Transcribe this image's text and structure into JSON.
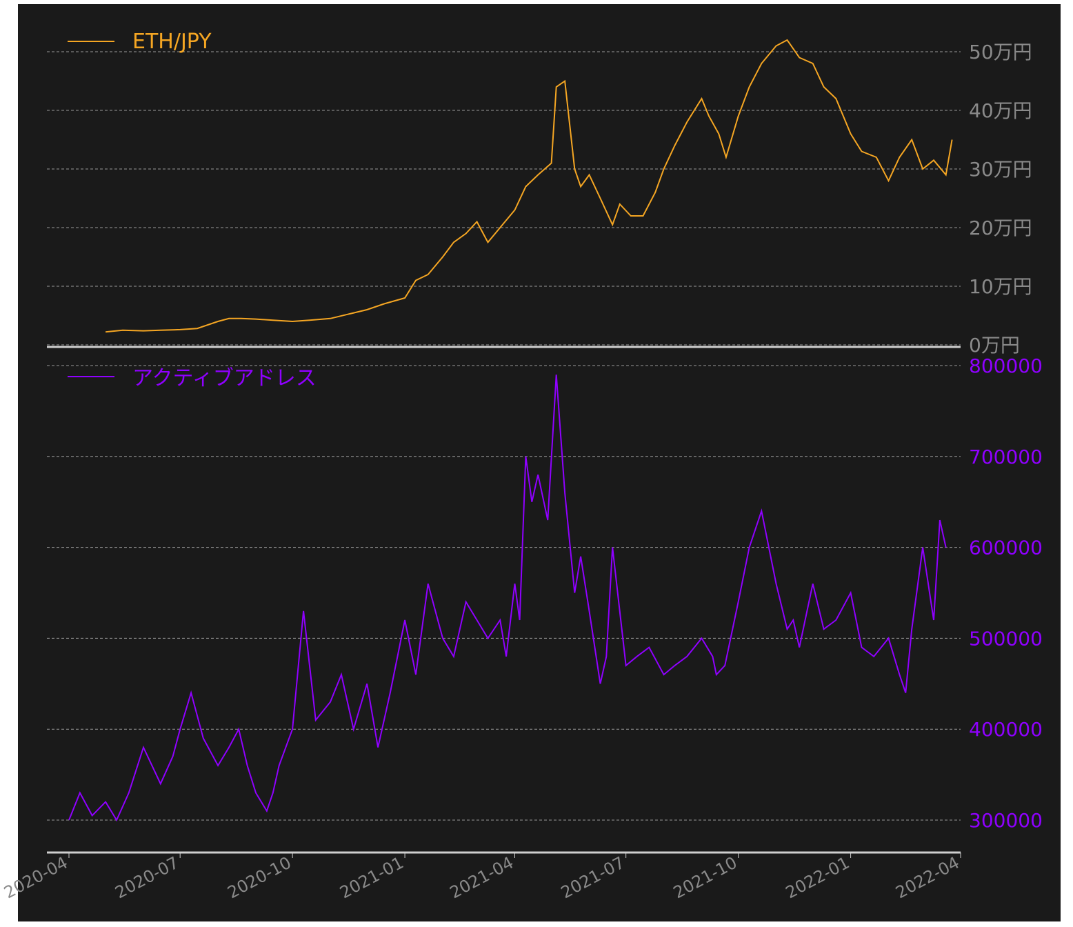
{
  "colors": {
    "background": "#1a1a1a",
    "outer": "#ffffff",
    "eth_line": "#f5a623",
    "addr_line": "#8f00ff",
    "grid": "#9a9a9a",
    "axis_line": "#cfcfcf",
    "tick_top": "#8a8a8a",
    "tick_bottom": "#8f00ff"
  },
  "chart_data": [
    {
      "type": "line",
      "panel": "top",
      "legend": [
        "ETH/JPY"
      ],
      "legend_placement": "top-left",
      "y_axis_side": "right",
      "yticks": [
        0,
        100000,
        200000,
        300000,
        400000,
        500000
      ],
      "ytick_labels": [
        "0万円",
        "10万円",
        "20万円",
        "30万円",
        "40万円",
        "50万円"
      ],
      "ylim": [
        0,
        550000
      ],
      "grid": "horizontal dashed",
      "series": [
        {
          "name": "ETH/JPY",
          "x": [
            "2020-05-01",
            "2020-05-15",
            "2020-06-01",
            "2020-06-15",
            "2020-07-01",
            "2020-07-15",
            "2020-08-01",
            "2020-08-10",
            "2020-08-20",
            "2020-09-01",
            "2020-09-15",
            "2020-10-01",
            "2020-10-15",
            "2020-11-01",
            "2020-11-15",
            "2020-12-01",
            "2020-12-15",
            "2021-01-01",
            "2021-01-10",
            "2021-01-20",
            "2021-02-01",
            "2021-02-10",
            "2021-02-20",
            "2021-03-01",
            "2021-03-10",
            "2021-03-20",
            "2021-04-01",
            "2021-04-10",
            "2021-04-20",
            "2021-05-01",
            "2021-05-05",
            "2021-05-12",
            "2021-05-20",
            "2021-05-25",
            "2021-06-01",
            "2021-06-10",
            "2021-06-20",
            "2021-06-26",
            "2021-07-05",
            "2021-07-15",
            "2021-07-25",
            "2021-08-01",
            "2021-08-10",
            "2021-08-20",
            "2021-09-01",
            "2021-09-07",
            "2021-09-15",
            "2021-09-21",
            "2021-10-01",
            "2021-10-10",
            "2021-10-20",
            "2021-11-01",
            "2021-11-10",
            "2021-11-20",
            "2021-12-01",
            "2021-12-10",
            "2021-12-20",
            "2022-01-01",
            "2022-01-10",
            "2022-01-22",
            "2022-02-01",
            "2022-02-10",
            "2022-02-20",
            "2022-03-01",
            "2022-03-10",
            "2022-03-20",
            "2022-03-25"
          ],
          "y": [
            22000,
            25000,
            24000,
            25000,
            26000,
            28000,
            40000,
            45000,
            45000,
            44000,
            42000,
            40000,
            42000,
            45000,
            52000,
            60000,
            70000,
            80000,
            110000,
            120000,
            150000,
            175000,
            190000,
            210000,
            175000,
            200000,
            230000,
            270000,
            290000,
            310000,
            440000,
            450000,
            300000,
            270000,
            290000,
            250000,
            205000,
            240000,
            220000,
            220000,
            260000,
            300000,
            340000,
            380000,
            420000,
            390000,
            360000,
            320000,
            390000,
            440000,
            480000,
            510000,
            520000,
            490000,
            480000,
            440000,
            420000,
            360000,
            330000,
            320000,
            280000,
            320000,
            350000,
            300000,
            315000,
            290000,
            350000
          ],
          "y_unit": "円"
        }
      ]
    },
    {
      "type": "line",
      "panel": "bottom",
      "legend": [
        "アクティブアドレス"
      ],
      "legend_placement": "top-left",
      "y_axis_side": "right",
      "yticks": [
        300000,
        400000,
        500000,
        600000,
        700000,
        800000
      ],
      "ytick_labels": [
        "300000",
        "400000",
        "500000",
        "600000",
        "700000",
        "800000"
      ],
      "ylim": [
        265000,
        800000
      ],
      "grid": "horizontal dashed",
      "xticks": [
        "2020-04",
        "2020-07",
        "2020-10",
        "2021-01",
        "2021-04",
        "2021-07",
        "2021-10",
        "2022-01",
        "2022-04"
      ],
      "series": [
        {
          "name": "アクティブアドレス",
          "x": [
            "2020-04-01",
            "2020-04-10",
            "2020-04-20",
            "2020-05-01",
            "2020-05-10",
            "2020-05-20",
            "2020-06-01",
            "2020-06-08",
            "2020-06-15",
            "2020-06-25",
            "2020-07-01",
            "2020-07-10",
            "2020-07-20",
            "2020-08-01",
            "2020-08-10",
            "2020-08-18",
            "2020-08-25",
            "2020-09-01",
            "2020-09-10",
            "2020-09-15",
            "2020-09-20",
            "2020-10-01",
            "2020-10-10",
            "2020-10-20",
            "2020-11-01",
            "2020-11-10",
            "2020-11-20",
            "2020-12-01",
            "2020-12-10",
            "2020-12-20",
            "2021-01-01",
            "2021-01-10",
            "2021-01-20",
            "2021-02-01",
            "2021-02-10",
            "2021-02-20",
            "2021-03-01",
            "2021-03-10",
            "2021-03-20",
            "2021-03-25",
            "2021-04-01",
            "2021-04-05",
            "2021-04-10",
            "2021-04-15",
            "2021-04-20",
            "2021-04-28",
            "2021-05-05",
            "2021-05-12",
            "2021-05-20",
            "2021-05-25",
            "2021-06-01",
            "2021-06-10",
            "2021-06-15",
            "2021-06-20",
            "2021-07-01",
            "2021-07-10",
            "2021-07-20",
            "2021-08-01",
            "2021-08-10",
            "2021-08-20",
            "2021-09-01",
            "2021-09-10",
            "2021-09-13",
            "2021-09-20",
            "2021-10-01",
            "2021-10-10",
            "2021-10-20",
            "2021-11-01",
            "2021-11-10",
            "2021-11-15",
            "2021-11-20",
            "2021-12-01",
            "2021-12-10",
            "2021-12-20",
            "2022-01-01",
            "2022-01-10",
            "2022-01-20",
            "2022-02-01",
            "2022-02-10",
            "2022-02-15",
            "2022-02-20",
            "2022-03-01",
            "2022-03-10",
            "2022-03-15",
            "2022-03-20"
          ],
          "y": [
            300000,
            330000,
            305000,
            320000,
            300000,
            330000,
            380000,
            360000,
            340000,
            370000,
            400000,
            440000,
            390000,
            360000,
            380000,
            400000,
            360000,
            330000,
            310000,
            330000,
            360000,
            400000,
            530000,
            410000,
            430000,
            460000,
            400000,
            450000,
            380000,
            440000,
            520000,
            460000,
            560000,
            500000,
            480000,
            540000,
            520000,
            500000,
            520000,
            480000,
            560000,
            520000,
            700000,
            650000,
            680000,
            630000,
            790000,
            660000,
            550000,
            590000,
            530000,
            450000,
            480000,
            600000,
            470000,
            480000,
            490000,
            460000,
            470000,
            480000,
            500000,
            480000,
            460000,
            470000,
            540000,
            600000,
            640000,
            560000,
            510000,
            520000,
            490000,
            560000,
            510000,
            520000,
            550000,
            490000,
            480000,
            500000,
            460000,
            440000,
            510000,
            600000,
            520000,
            630000,
            600000
          ]
        }
      ]
    }
  ]
}
